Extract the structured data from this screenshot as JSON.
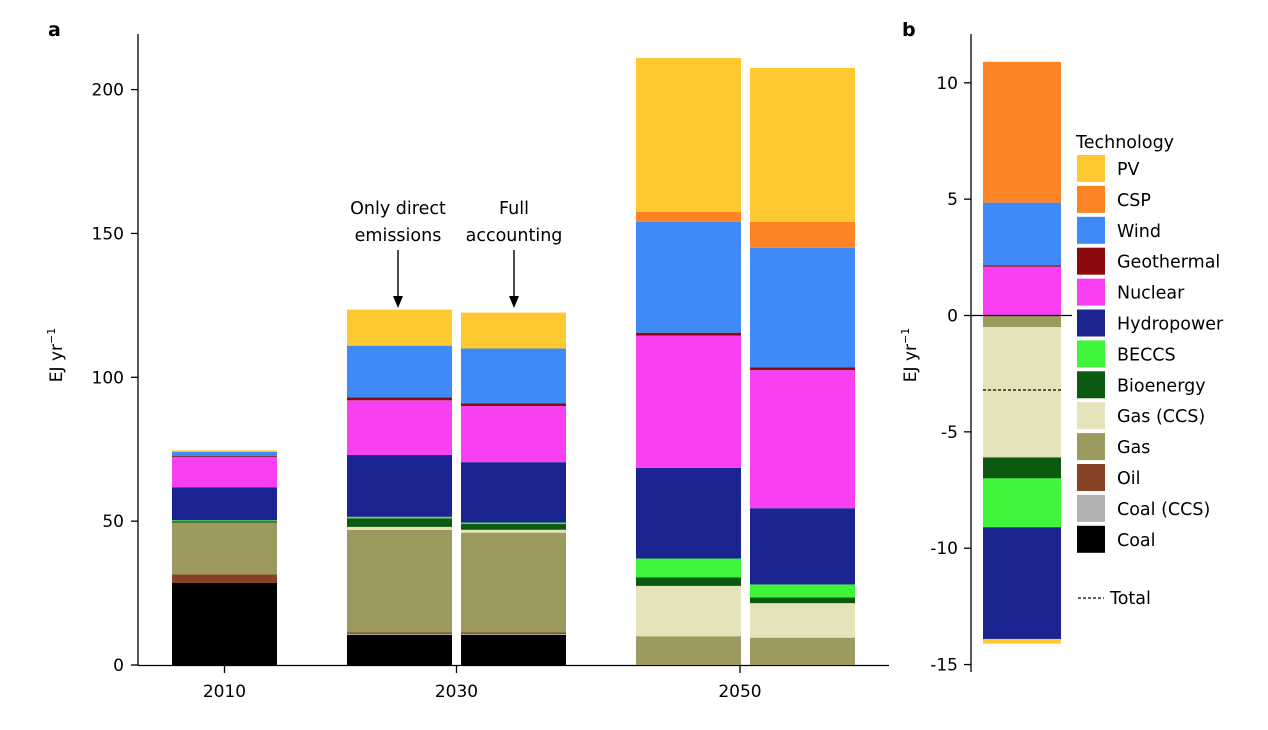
{
  "chart_data": [
    {
      "panel": "a",
      "type": "bar",
      "stacked": true,
      "ylabel": "EJ yr",
      "ylabel_superscript": "−1",
      "ylim": [
        0,
        220
      ],
      "yticks": [
        "0",
        "50",
        "100",
        "150",
        "200"
      ],
      "groups": [
        "2010",
        "2030",
        "2050"
      ],
      "bars": [
        {
          "group": "2010",
          "segments": {
            "Coal": 28.5,
            "Oil": 3.0,
            "Gas": 18.0,
            "Bioenergy": 0.5,
            "BECCS": 0.3,
            "Hydropower": 11.5,
            "Nuclear": 10.5,
            "Geothermal": 0.3,
            "Wind": 1.5,
            "PV": 0.5
          }
        },
        {
          "group": "2030",
          "segments": {
            "Coal": 10.5,
            "Coal (CCS)": 0.3,
            "Oil": 0.5,
            "Gas": 35.7,
            "Gas (CCS)": 1.0,
            "Bioenergy": 3.0,
            "BECCS": 0.5,
            "Hydropower": 21.5,
            "Nuclear": 19.0,
            "Geothermal": 1.0,
            "Wind": 18.0,
            "PV": 12.5
          }
        },
        {
          "group": "2030",
          "segments": {
            "Coal": 10.5,
            "Coal (CCS)": 0.3,
            "Oil": 0.5,
            "Gas": 34.7,
            "Gas (CCS)": 1.0,
            "Bioenergy": 2.0,
            "BECCS": 0.5,
            "Hydropower": 21.0,
            "Nuclear": 19.5,
            "Geothermal": 1.0,
            "Wind": 19.0,
            "PV": 12.5
          }
        },
        {
          "group": "2050",
          "segments": {
            "Gas": 10.0,
            "Gas (CCS)": 17.5,
            "Bioenergy": 3.0,
            "BECCS": 6.5,
            "Hydropower": 31.5,
            "Nuclear": 46.0,
            "Geothermal": 1.0,
            "Wind": 38.5,
            "CSP": 3.5,
            "PV": 53.5
          }
        },
        {
          "group": "2050",
          "segments": {
            "Gas": 9.5,
            "Gas (CCS)": 12.0,
            "Bioenergy": 2.0,
            "BECCS": 4.5,
            "Hydropower": 26.5,
            "Nuclear": 48.0,
            "Geothermal": 1.0,
            "Wind": 41.5,
            "CSP": 9.0,
            "PV": 53.5
          }
        }
      ],
      "annotations": [
        {
          "text": [
            "Only direct",
            "emissions"
          ]
        },
        {
          "text": [
            "Full",
            "accounting"
          ]
        }
      ]
    },
    {
      "panel": "b",
      "type": "bar",
      "stacked": true,
      "diverging": true,
      "ylabel": "EJ yr",
      "ylabel_superscript": "−1",
      "ylim": [
        -15,
        12
      ],
      "yticks": [
        "10",
        "5",
        "0",
        "-5",
        "-10",
        "-15"
      ],
      "positive_segments": {
        "Nuclear": 2.1,
        "Geothermal": 0.05,
        "Wind": 2.7,
        "CSP": 6.05
      },
      "negative_segments": {
        "Gas": -0.5,
        "Gas (CCS)": -5.6,
        "Bioenergy": -0.9,
        "BECCS": -2.1,
        "Hydropower": -4.8,
        "PV": -0.2
      },
      "total": -3.2,
      "total_label": "Total"
    }
  ],
  "legend": {
    "title": "Technology",
    "items": [
      {
        "name": "PV",
        "color": "#FDC830"
      },
      {
        "name": "CSP",
        "color": "#FC8427"
      },
      {
        "name": "Wind",
        "color": "#3F8AF6"
      },
      {
        "name": "Geothermal",
        "color": "#8A0A0E"
      },
      {
        "name": "Nuclear",
        "color": "#F840F2"
      },
      {
        "name": "Hydropower",
        "color": "#1C2492"
      },
      {
        "name": "BECCS",
        "color": "#3FF53C"
      },
      {
        "name": "Bioenergy",
        "color": "#0C5A10"
      },
      {
        "name": "Gas (CCS)",
        "color": "#E4E3B9"
      },
      {
        "name": "Gas",
        "color": "#9C9A5F"
      },
      {
        "name": "Oil",
        "color": "#874125"
      },
      {
        "name": "Coal (CCS)",
        "color": "#B2B2B2"
      },
      {
        "name": "Coal",
        "color": "#000000"
      }
    ],
    "total_label": "Total"
  },
  "panel_labels": [
    "a",
    "b"
  ]
}
